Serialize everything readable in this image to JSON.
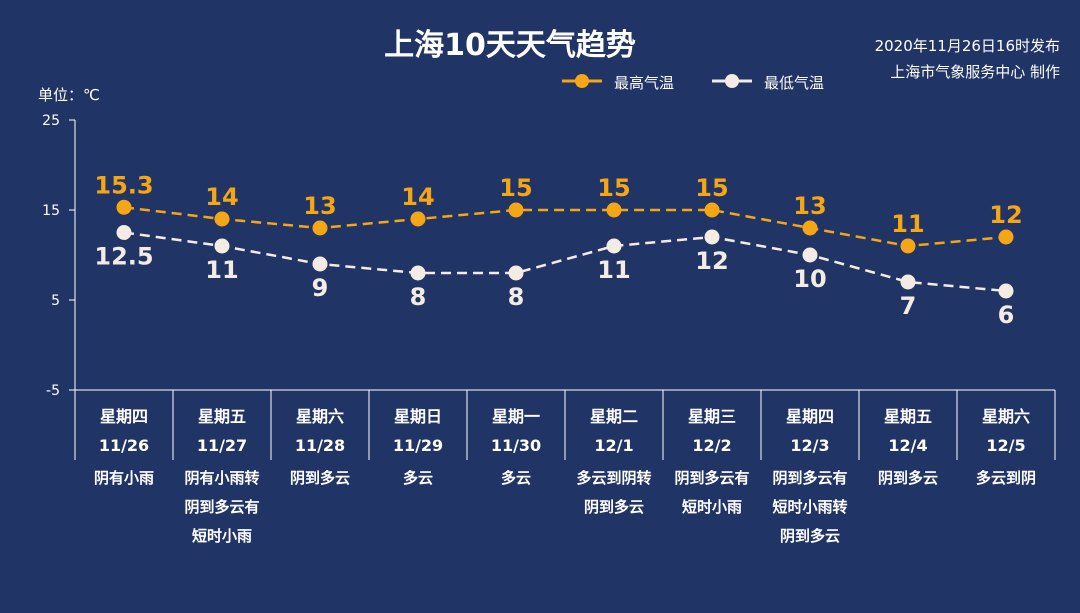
{
  "title": "上海10天天气趋势",
  "issued_line1": "2020年11月26日16时发布",
  "issued_line2": "上海市气象服务中心 制作",
  "unit_label": "单位：℃",
  "colors": {
    "background": "#213466",
    "high": "#f5a614",
    "low": "#f4ece3",
    "axis": "#ffffff"
  },
  "chart_data": {
    "type": "line",
    "categories": [
      "11/26",
      "11/27",
      "11/28",
      "11/29",
      "11/30",
      "12/1",
      "12/2",
      "12/3",
      "12/4",
      "12/5"
    ],
    "weekdays": [
      "星期四",
      "星期五",
      "星期六",
      "星期日",
      "星期一",
      "星期二",
      "星期三",
      "星期四",
      "星期五",
      "星期六"
    ],
    "weather": [
      [
        "阴有小雨"
      ],
      [
        "阴有小雨转",
        "阴到多云有",
        "短时小雨"
      ],
      [
        "阴到多云"
      ],
      [
        "多云"
      ],
      [
        "多云"
      ],
      [
        "多云到阴转",
        "阴到多云"
      ],
      [
        "阴到多云有",
        "短时小雨"
      ],
      [
        "阴到多云有",
        "短时小雨转",
        "阴到多云"
      ],
      [
        "阴到多云"
      ],
      [
        "多云到阴"
      ]
    ],
    "series": [
      {
        "name": "最高气温",
        "values": [
          15.3,
          14,
          13,
          14,
          15,
          15,
          15,
          13,
          11,
          12
        ]
      },
      {
        "name": "最低气温",
        "values": [
          12.5,
          11,
          9,
          8,
          8,
          11,
          12,
          10,
          7,
          6
        ]
      }
    ],
    "yticks": [
      "25",
      "15",
      "5",
      "-5"
    ],
    "ylim": [
      -5,
      25
    ],
    "legend_position": "top-center",
    "grid": false
  }
}
